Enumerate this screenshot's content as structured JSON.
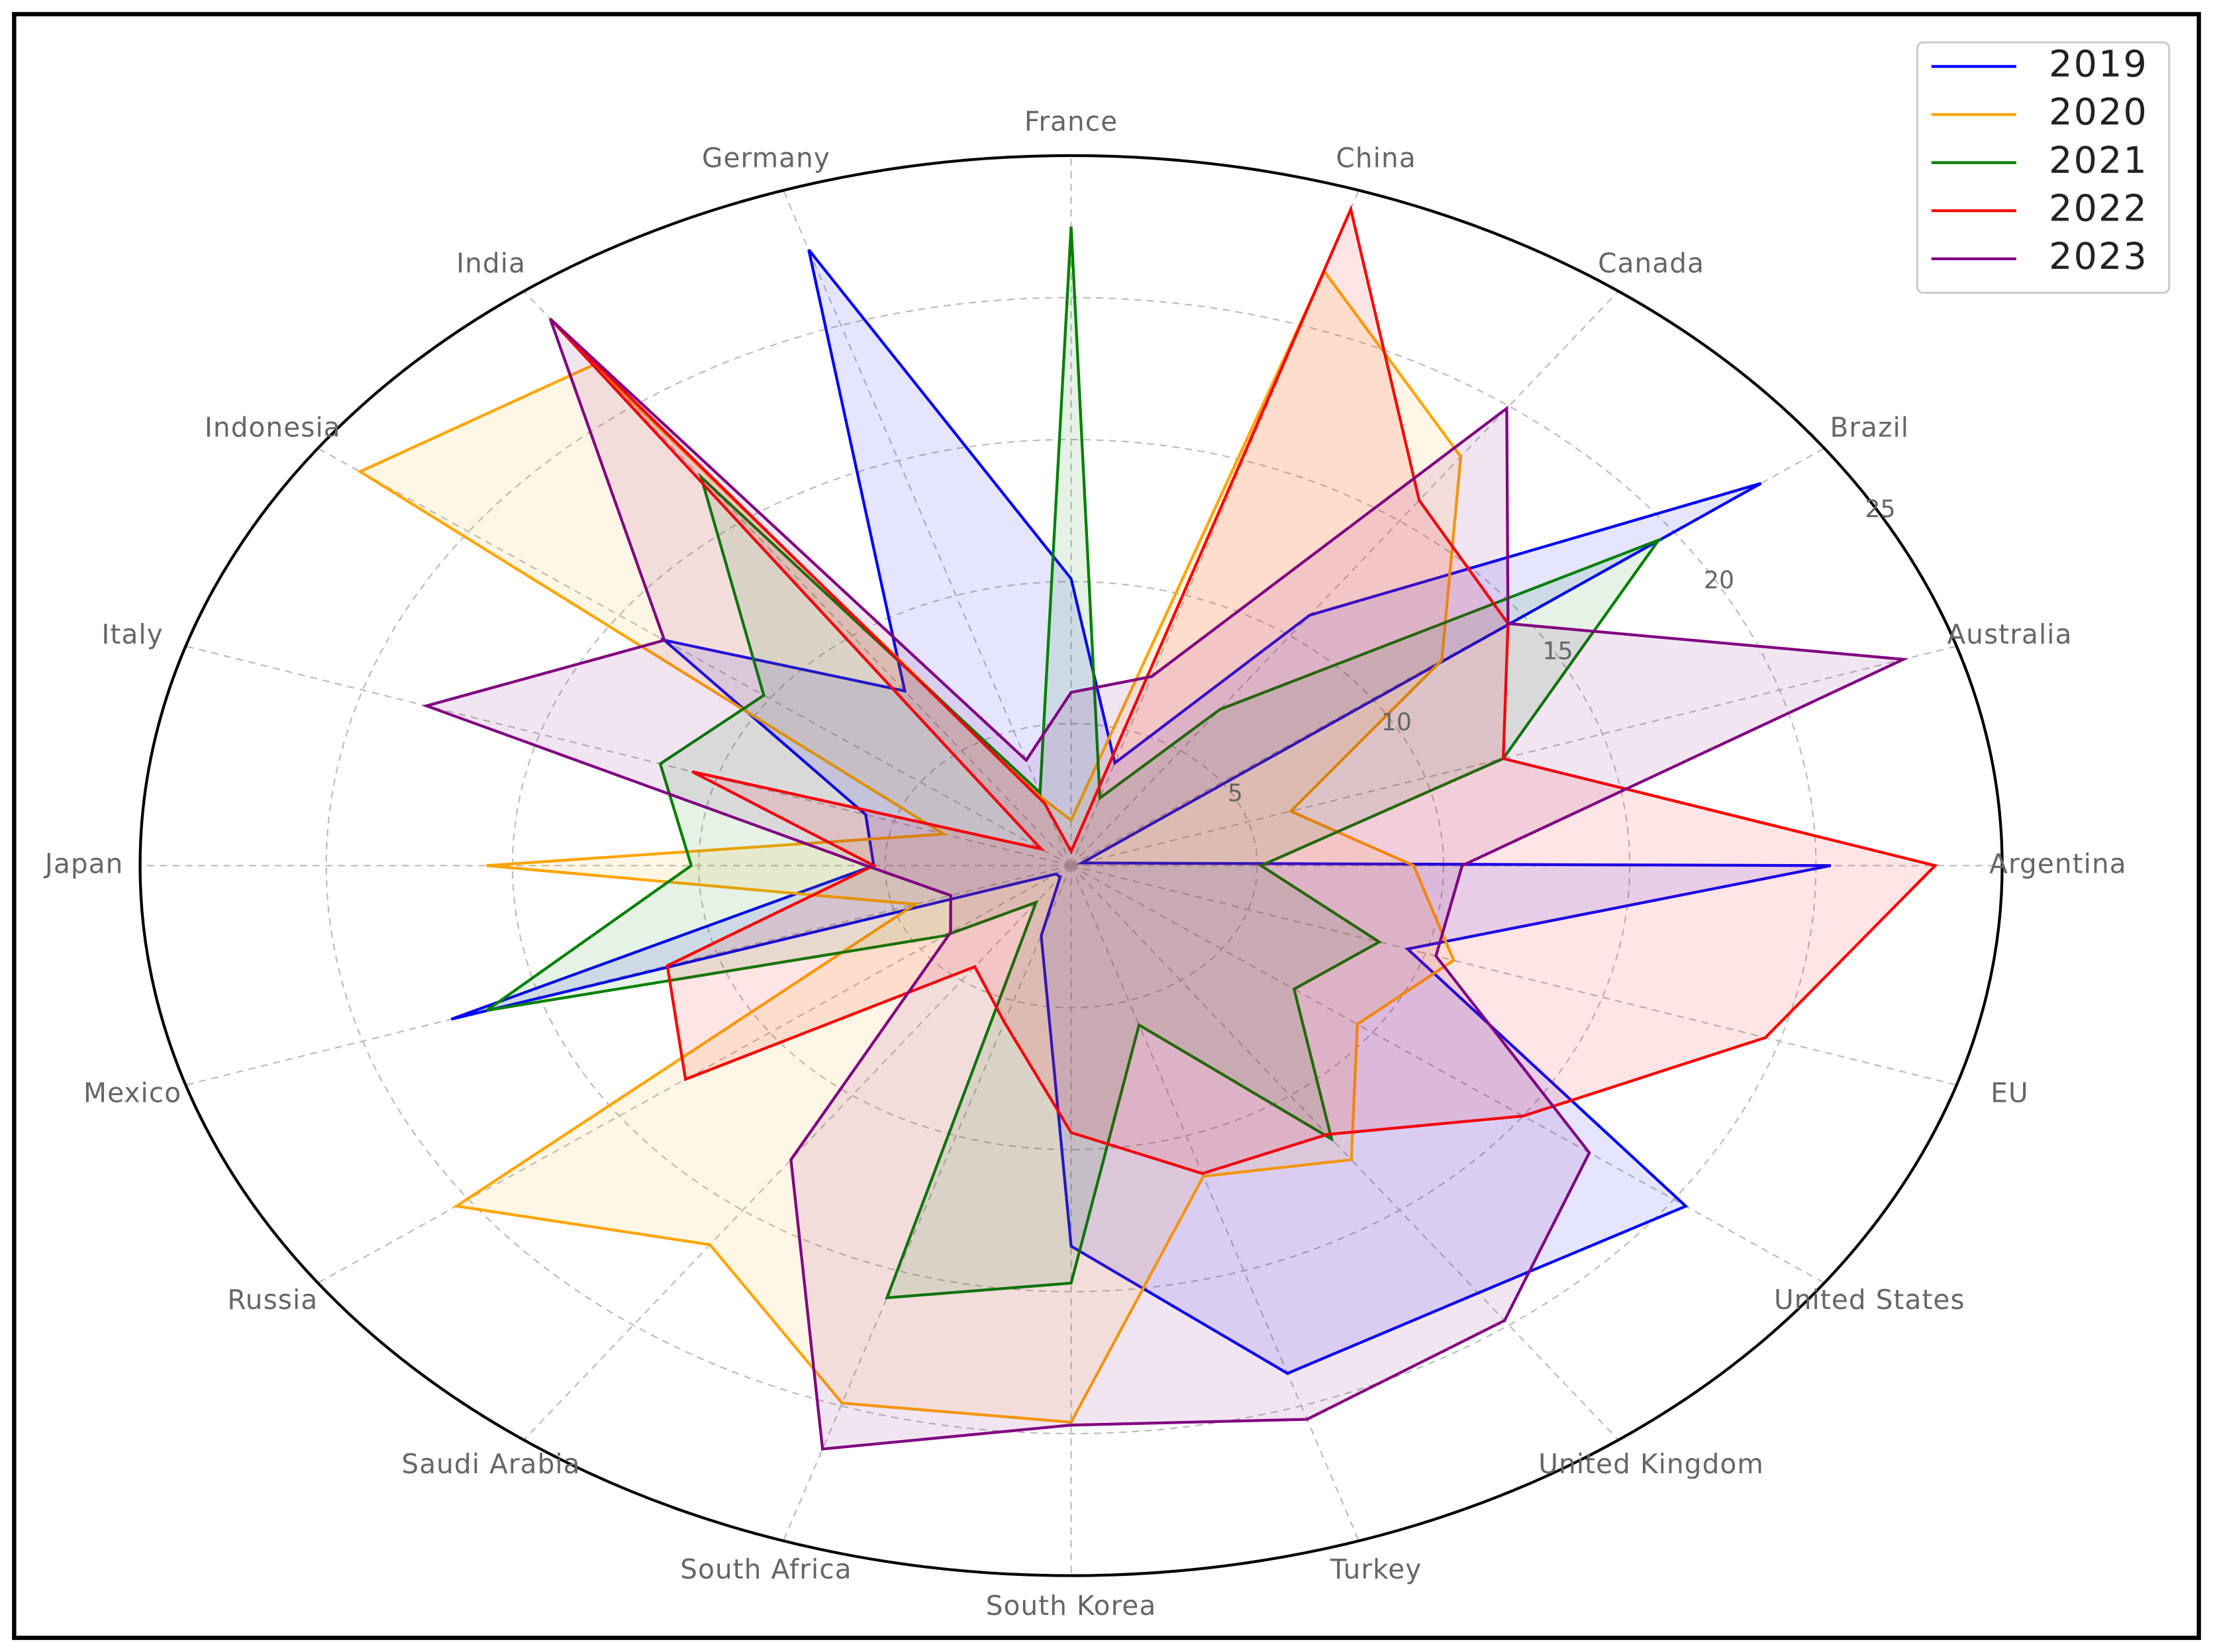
{
  "chart_data": {
    "type": "radar",
    "categories": [
      "Argentina",
      "Australia",
      "Brazil",
      "Canada",
      "China",
      "France",
      "Germany",
      "India",
      "Indonesia",
      "Italy",
      "Japan",
      "Mexico",
      "Russia",
      "Saudi Arabia",
      "South Africa",
      "South Korea",
      "Turkey",
      "United Kingdom",
      "United States",
      "EU"
    ],
    "series": [
      {
        "name": "2019",
        "color": "#0000ff",
        "values": [
          20.4,
          0.3,
          22.9,
          10.9,
          3.8,
          10.1,
          22.8,
          7.6,
          13.5,
          5.8,
          5.3,
          17.5,
          0.5,
          0.5,
          2.6,
          13.4,
          18.8,
          18.6,
          20.4,
          9.5
        ]
      },
      {
        "name": "2020",
        "color": "#ffa500",
        "values": [
          9.2,
          6.2,
          12.3,
          17.8,
          22.0,
          1.6,
          2.5,
          21.8,
          23.6,
          3.6,
          15.7,
          4.4,
          20.4,
          16.5,
          19.9,
          19.6,
          11.5,
          12.8,
          9.5,
          10.8
        ]
      },
      {
        "name": "2021",
        "color": "#008000",
        "values": [
          5.1,
          12.2,
          19.5,
          6.8,
          2.5,
          22.5,
          2.7,
          16.9,
          10.2,
          11.6,
          10.2,
          16.5,
          4.2,
          1.6,
          16.0,
          14.7,
          5.9,
          11.9,
          7.4,
          8.7
        ]
      },
      {
        "name": "2022",
        "color": "#ff0000",
        "values": [
          23.2,
          12.2,
          14.5,
          15.9,
          24.3,
          0.5,
          2.3,
          23.8,
          1.0,
          10.7,
          5.3,
          11.4,
          12.8,
          4.4,
          5.8,
          9.4,
          11.4,
          11.7,
          15.0,
          19.6
        ]
      },
      {
        "name": "2023",
        "color": "#800080",
        "values": [
          10.5,
          23.5,
          14.5,
          19.9,
          7.0,
          6.1,
          3.9,
          23.8,
          13.5,
          18.2,
          5.5,
          3.4,
          4.0,
          12.8,
          21.6,
          19.7,
          20.5,
          19.8,
          17.2,
          10.3
        ]
      }
    ],
    "ylim": [
      0,
      25
    ],
    "yticks": [
      5,
      10,
      15,
      20,
      25
    ],
    "grid": true,
    "legend": "upper right"
  }
}
